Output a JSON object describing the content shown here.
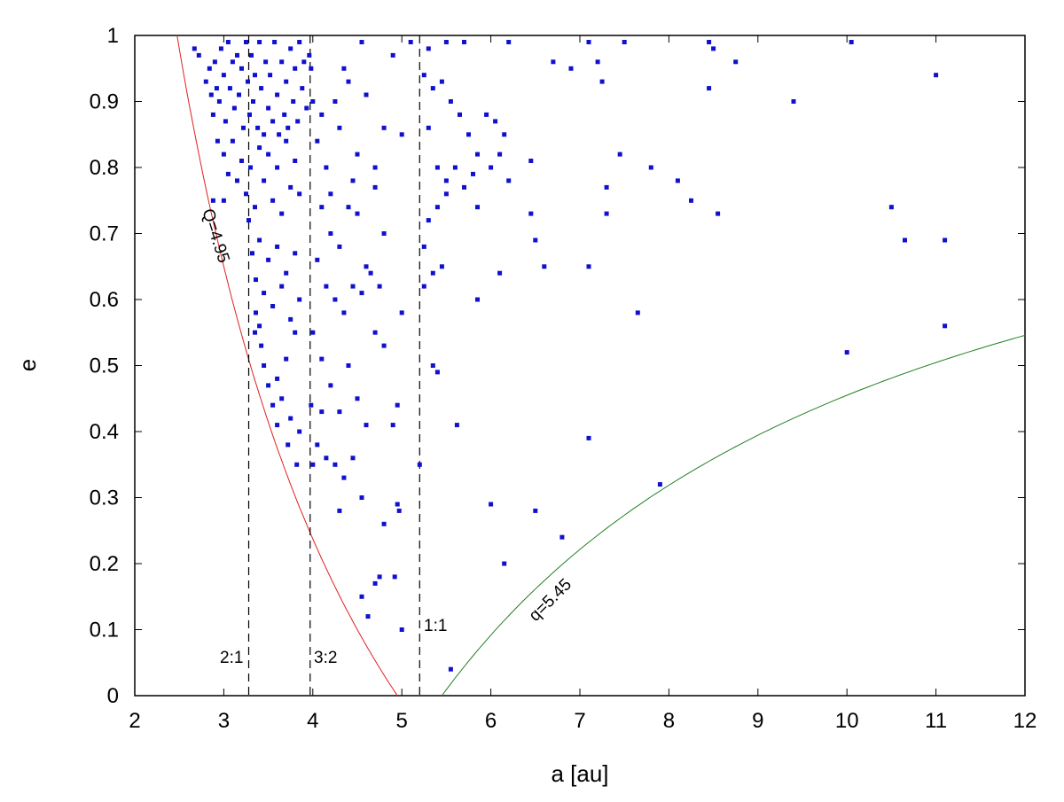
{
  "chart_data": {
    "type": "scatter",
    "xlabel": "a [au]",
    "ylabel": "e",
    "xlim": [
      2,
      12
    ],
    "ylim": [
      0,
      1
    ],
    "x_ticks": [
      "2",
      "3",
      "4",
      "5",
      "6",
      "7",
      "8",
      "9",
      "10",
      "11",
      "12"
    ],
    "y_ticks": [
      "0",
      "0.1",
      "0.2",
      "0.3",
      "0.4",
      "0.5",
      "0.6",
      "0.7",
      "0.8",
      "0.9",
      "1"
    ],
    "grid": false,
    "point_color": "#1010d0",
    "series": [
      {
        "values": [
          [
            2.67,
            0.98
          ],
          [
            2.72,
            0.97
          ],
          [
            2.8,
            0.93
          ],
          [
            2.84,
            0.95
          ],
          [
            2.86,
            0.91
          ],
          [
            2.88,
            0.88
          ],
          [
            2.9,
            0.96
          ],
          [
            2.92,
            0.92
          ],
          [
            2.95,
            0.9
          ],
          [
            2.97,
            0.98
          ],
          [
            3.0,
            0.94
          ],
          [
            3.02,
            0.87
          ],
          [
            3.05,
            0.99
          ],
          [
            3.07,
            0.92
          ],
          [
            3.1,
            0.96
          ],
          [
            3.12,
            0.89
          ],
          [
            3.15,
            0.97
          ],
          [
            3.17,
            0.91
          ],
          [
            3.2,
            0.95
          ],
          [
            3.22,
            0.86
          ],
          [
            3.25,
            0.99
          ],
          [
            3.27,
            0.93
          ],
          [
            3.29,
            0.88
          ],
          [
            3.31,
            0.97
          ],
          [
            3.33,
            0.9
          ],
          [
            3.35,
            0.94
          ],
          [
            3.38,
            0.86
          ],
          [
            3.4,
            0.99
          ],
          [
            3.42,
            0.92
          ],
          [
            3.45,
            0.85
          ],
          [
            3.47,
            0.96
          ],
          [
            3.5,
            0.89
          ],
          [
            3.52,
            0.94
          ],
          [
            3.55,
            0.87
          ],
          [
            3.57,
            0.99
          ],
          [
            3.6,
            0.91
          ],
          [
            3.62,
            0.85
          ],
          [
            3.65,
            0.96
          ],
          [
            3.68,
            0.88
          ],
          [
            3.7,
            0.93
          ],
          [
            3.72,
            0.86
          ],
          [
            3.75,
            0.98
          ],
          [
            3.78,
            0.9
          ],
          [
            3.8,
            0.95
          ],
          [
            3.83,
            0.87
          ],
          [
            3.85,
            0.99
          ],
          [
            3.88,
            0.92
          ],
          [
            3.9,
            0.96
          ],
          [
            3.93,
            0.89
          ],
          [
            3.96,
            0.97
          ],
          [
            2.93,
            0.84
          ],
          [
            3.0,
            0.82
          ],
          [
            3.05,
            0.79
          ],
          [
            3.1,
            0.84
          ],
          [
            3.15,
            0.78
          ],
          [
            3.2,
            0.81
          ],
          [
            3.25,
            0.76
          ],
          [
            3.3,
            0.8
          ],
          [
            3.35,
            0.74
          ],
          [
            3.4,
            0.83
          ],
          [
            3.45,
            0.78
          ],
          [
            3.5,
            0.82
          ],
          [
            3.55,
            0.75
          ],
          [
            3.6,
            0.8
          ],
          [
            3.65,
            0.73
          ],
          [
            3.7,
            0.84
          ],
          [
            3.75,
            0.77
          ],
          [
            3.8,
            0.81
          ],
          [
            3.85,
            0.76
          ],
          [
            2.88,
            0.75
          ],
          [
            3.0,
            0.75
          ],
          [
            3.28,
            0.72
          ],
          [
            3.32,
            0.67
          ],
          [
            3.36,
            0.63
          ],
          [
            3.4,
            0.69
          ],
          [
            3.45,
            0.61
          ],
          [
            3.5,
            0.66
          ],
          [
            3.55,
            0.59
          ],
          [
            3.6,
            0.68
          ],
          [
            3.65,
            0.62
          ],
          [
            3.7,
            0.64
          ],
          [
            3.75,
            0.57
          ],
          [
            3.8,
            0.67
          ],
          [
            3.85,
            0.6
          ],
          [
            3.4,
            0.56
          ],
          [
            3.42,
            0.53
          ],
          [
            3.45,
            0.5
          ],
          [
            3.5,
            0.47
          ],
          [
            3.55,
            0.44
          ],
          [
            3.6,
            0.48
          ],
          [
            3.65,
            0.45
          ],
          [
            3.7,
            0.51
          ],
          [
            3.75,
            0.42
          ],
          [
            3.8,
            0.55
          ],
          [
            3.85,
            0.4
          ],
          [
            3.6,
            0.41
          ],
          [
            3.72,
            0.38
          ],
          [
            3.82,
            0.35
          ],
          [
            3.35,
            0.55
          ],
          [
            3.36,
            0.58
          ],
          [
            3.98,
            0.95
          ],
          [
            4.0,
            0.9
          ],
          [
            4.05,
            0.84
          ],
          [
            4.1,
            0.88
          ],
          [
            4.15,
            0.8
          ],
          [
            4.2,
            0.76
          ],
          [
            4.25,
            0.9
          ],
          [
            4.3,
            0.86
          ],
          [
            4.35,
            0.95
          ],
          [
            4.4,
            0.93
          ],
          [
            4.45,
            0.78
          ],
          [
            4.5,
            0.82
          ],
          [
            4.55,
            0.99
          ],
          [
            4.6,
            0.91
          ],
          [
            4.7,
            0.8
          ],
          [
            4.8,
            0.86
          ],
          [
            4.9,
            0.97
          ],
          [
            5.0,
            0.85
          ],
          [
            4.1,
            0.74
          ],
          [
            4.2,
            0.7
          ],
          [
            4.3,
            0.68
          ],
          [
            4.4,
            0.74
          ],
          [
            4.5,
            0.73
          ],
          [
            4.6,
            0.65
          ],
          [
            4.7,
            0.77
          ],
          [
            4.8,
            0.7
          ],
          [
            4.05,
            0.66
          ],
          [
            4.15,
            0.62
          ],
          [
            4.25,
            0.6
          ],
          [
            4.35,
            0.58
          ],
          [
            4.45,
            0.62
          ],
          [
            4.55,
            0.61
          ],
          [
            4.65,
            0.64
          ],
          [
            4.75,
            0.62
          ],
          [
            4.0,
            0.55
          ],
          [
            4.1,
            0.51
          ],
          [
            4.2,
            0.47
          ],
          [
            4.3,
            0.43
          ],
          [
            4.4,
            0.5
          ],
          [
            4.5,
            0.45
          ],
          [
            4.6,
            0.41
          ],
          [
            4.7,
            0.55
          ],
          [
            4.8,
            0.53
          ],
          [
            5.0,
            0.58
          ],
          [
            4.05,
            0.38
          ],
          [
            4.15,
            0.36
          ],
          [
            4.25,
            0.35
          ],
          [
            4.35,
            0.33
          ],
          [
            4.45,
            0.36
          ],
          [
            4.55,
            0.3
          ],
          [
            4.8,
            0.26
          ],
          [
            4.95,
            0.29
          ],
          [
            4.97,
            0.28
          ],
          [
            4.3,
            0.28
          ],
          [
            4.1,
            0.43
          ],
          [
            4.95,
            0.44
          ],
          [
            4.9,
            0.41
          ],
          [
            5.0,
            0.1
          ],
          [
            4.75,
            0.18
          ],
          [
            4.7,
            0.17
          ],
          [
            4.55,
            0.15
          ],
          [
            4.62,
            0.12
          ],
          [
            4.92,
            0.18
          ],
          [
            4.0,
            0.35
          ],
          [
            3.98,
            0.44
          ],
          [
            5.1,
            0.99
          ],
          [
            5.3,
            0.98
          ],
          [
            5.5,
            0.99
          ],
          [
            5.7,
            0.99
          ],
          [
            5.25,
            0.94
          ],
          [
            5.35,
            0.92
          ],
          [
            5.45,
            0.93
          ],
          [
            5.55,
            0.9
          ],
          [
            5.65,
            0.88
          ],
          [
            5.75,
            0.85
          ],
          [
            5.85,
            0.82
          ],
          [
            5.95,
            0.88
          ],
          [
            6.05,
            0.87
          ],
          [
            6.15,
            0.85
          ],
          [
            5.3,
            0.86
          ],
          [
            5.4,
            0.8
          ],
          [
            5.5,
            0.78
          ],
          [
            5.6,
            0.8
          ],
          [
            5.7,
            0.77
          ],
          [
            5.8,
            0.79
          ],
          [
            6.0,
            0.8
          ],
          [
            6.1,
            0.82
          ],
          [
            6.2,
            0.78
          ],
          [
            5.3,
            0.72
          ],
          [
            5.4,
            0.74
          ],
          [
            5.5,
            0.76
          ],
          [
            5.85,
            0.74
          ],
          [
            5.25,
            0.68
          ],
          [
            5.35,
            0.64
          ],
          [
            5.45,
            0.65
          ],
          [
            5.25,
            0.62
          ],
          [
            5.85,
            0.6
          ],
          [
            6.1,
            0.64
          ],
          [
            5.35,
            0.5
          ],
          [
            5.4,
            0.49
          ],
          [
            5.2,
            0.35
          ],
          [
            5.62,
            0.41
          ],
          [
            5.55,
            0.04
          ],
          [
            6.2,
            0.99
          ],
          [
            6.7,
            0.96
          ],
          [
            6.9,
            0.95
          ],
          [
            7.1,
            0.99
          ],
          [
            7.2,
            0.96
          ],
          [
            7.25,
            0.93
          ],
          [
            7.5,
            0.99
          ],
          [
            6.45,
            0.81
          ],
          [
            6.45,
            0.73
          ],
          [
            6.5,
            0.69
          ],
          [
            6.6,
            0.65
          ],
          [
            7.1,
            0.65
          ],
          [
            7.3,
            0.77
          ],
          [
            7.3,
            0.73
          ],
          [
            7.45,
            0.82
          ],
          [
            7.8,
            0.8
          ],
          [
            8.1,
            0.78
          ],
          [
            8.25,
            0.75
          ],
          [
            8.45,
            0.99
          ],
          [
            8.5,
            0.98
          ],
          [
            8.45,
            0.92
          ],
          [
            8.55,
            0.73
          ],
          [
            8.75,
            0.96
          ],
          [
            7.65,
            0.58
          ],
          [
            6.0,
            0.29
          ],
          [
            6.15,
            0.2
          ],
          [
            6.5,
            0.28
          ],
          [
            6.8,
            0.24
          ],
          [
            7.1,
            0.39
          ],
          [
            7.9,
            0.32
          ],
          [
            9.4,
            0.9
          ],
          [
            10.0,
            0.52
          ],
          [
            10.05,
            0.99
          ],
          [
            10.5,
            0.74
          ],
          [
            10.65,
            0.69
          ],
          [
            11.0,
            0.94
          ],
          [
            11.1,
            0.69
          ],
          [
            11.1,
            0.56
          ]
        ]
      }
    ],
    "curves": {
      "Q": {
        "label": "Q=4.95",
        "value": 4.95,
        "color": "#e02020"
      },
      "q": {
        "label": "q=5.45",
        "value": 5.45,
        "color": "#208020"
      }
    },
    "resonances": [
      {
        "label": "2:1",
        "a": 3.28
      },
      {
        "label": "3:2",
        "a": 3.97
      },
      {
        "label": "1:1",
        "a": 5.2
      }
    ]
  }
}
